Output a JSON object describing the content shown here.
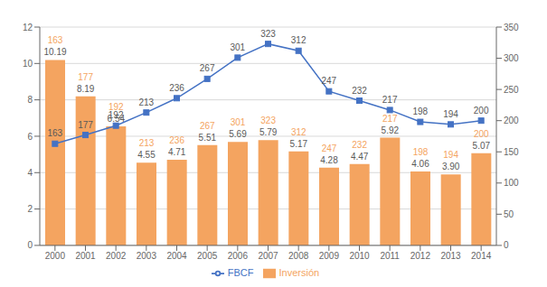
{
  "chart_data": {
    "type": "bar",
    "categories": [
      "2000",
      "2001",
      "2002",
      "2003",
      "2004",
      "2005",
      "2006",
      "2007",
      "2008",
      "2009",
      "2010",
      "2011",
      "2012",
      "2013",
      "2014"
    ],
    "series": [
      {
        "name": "Inversión",
        "type": "bar",
        "color": "#F4A460",
        "values": [
          10.19,
          8.19,
          6.54,
          4.55,
          4.71,
          5.51,
          5.69,
          5.79,
          5.17,
          4.28,
          4.47,
          5.92,
          4.06,
          3.9,
          5.07
        ],
        "value_labels": [
          "10.19",
          "8.19",
          "6.54",
          "4.55",
          "4.71",
          "5.51",
          "5.69",
          "5.79",
          "5.17",
          "4.28",
          "4.47",
          "5.92",
          "4.06",
          "3.90",
          "5.07"
        ],
        "data_labels": true
      },
      {
        "name": "FBCF",
        "type": "line",
        "axis": "y2",
        "color": "#4472C4",
        "marker": "square",
        "values": [
          163,
          177,
          192,
          213,
          236,
          267,
          301,
          323,
          312,
          247,
          232,
          217,
          198,
          194,
          200
        ],
        "data_labels": true
      }
    ],
    "ylim": [
      0,
      12
    ],
    "yticks": [
      0,
      2,
      4,
      6,
      8,
      10,
      12
    ],
    "y2lim": [
      0,
      350
    ],
    "y2ticks": [
      0,
      50,
      100,
      150,
      200,
      250,
      300,
      350
    ],
    "grid": true,
    "legend": "bottom"
  }
}
